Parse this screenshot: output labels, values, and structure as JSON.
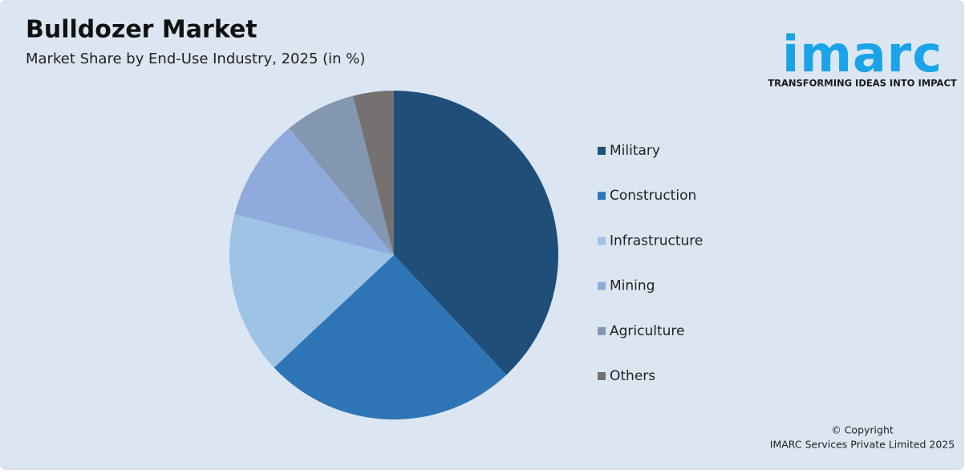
{
  "chart_data": {
    "type": "pie",
    "title": "Bulldozer Market",
    "subtitle": "Market Share by End-Use Industry, 2025 (in %)",
    "categories": [
      "Military",
      "Construction",
      "Infrastructure",
      "Mining",
      "Agriculture",
      "Others"
    ],
    "values": [
      38,
      25,
      16,
      10,
      7,
      4
    ],
    "colors": [
      "#1f4e79",
      "#2e75b6",
      "#9dc3e6",
      "#8faadc",
      "#8497b0",
      "#767171"
    ],
    "legend": "right"
  },
  "logo": {
    "name": "imarc",
    "tagline": "TRANSFORMING IDEAS INTO IMPACT"
  },
  "copyright": [
    "© Copyright",
    "IMARC Services Private Limited 2025"
  ]
}
